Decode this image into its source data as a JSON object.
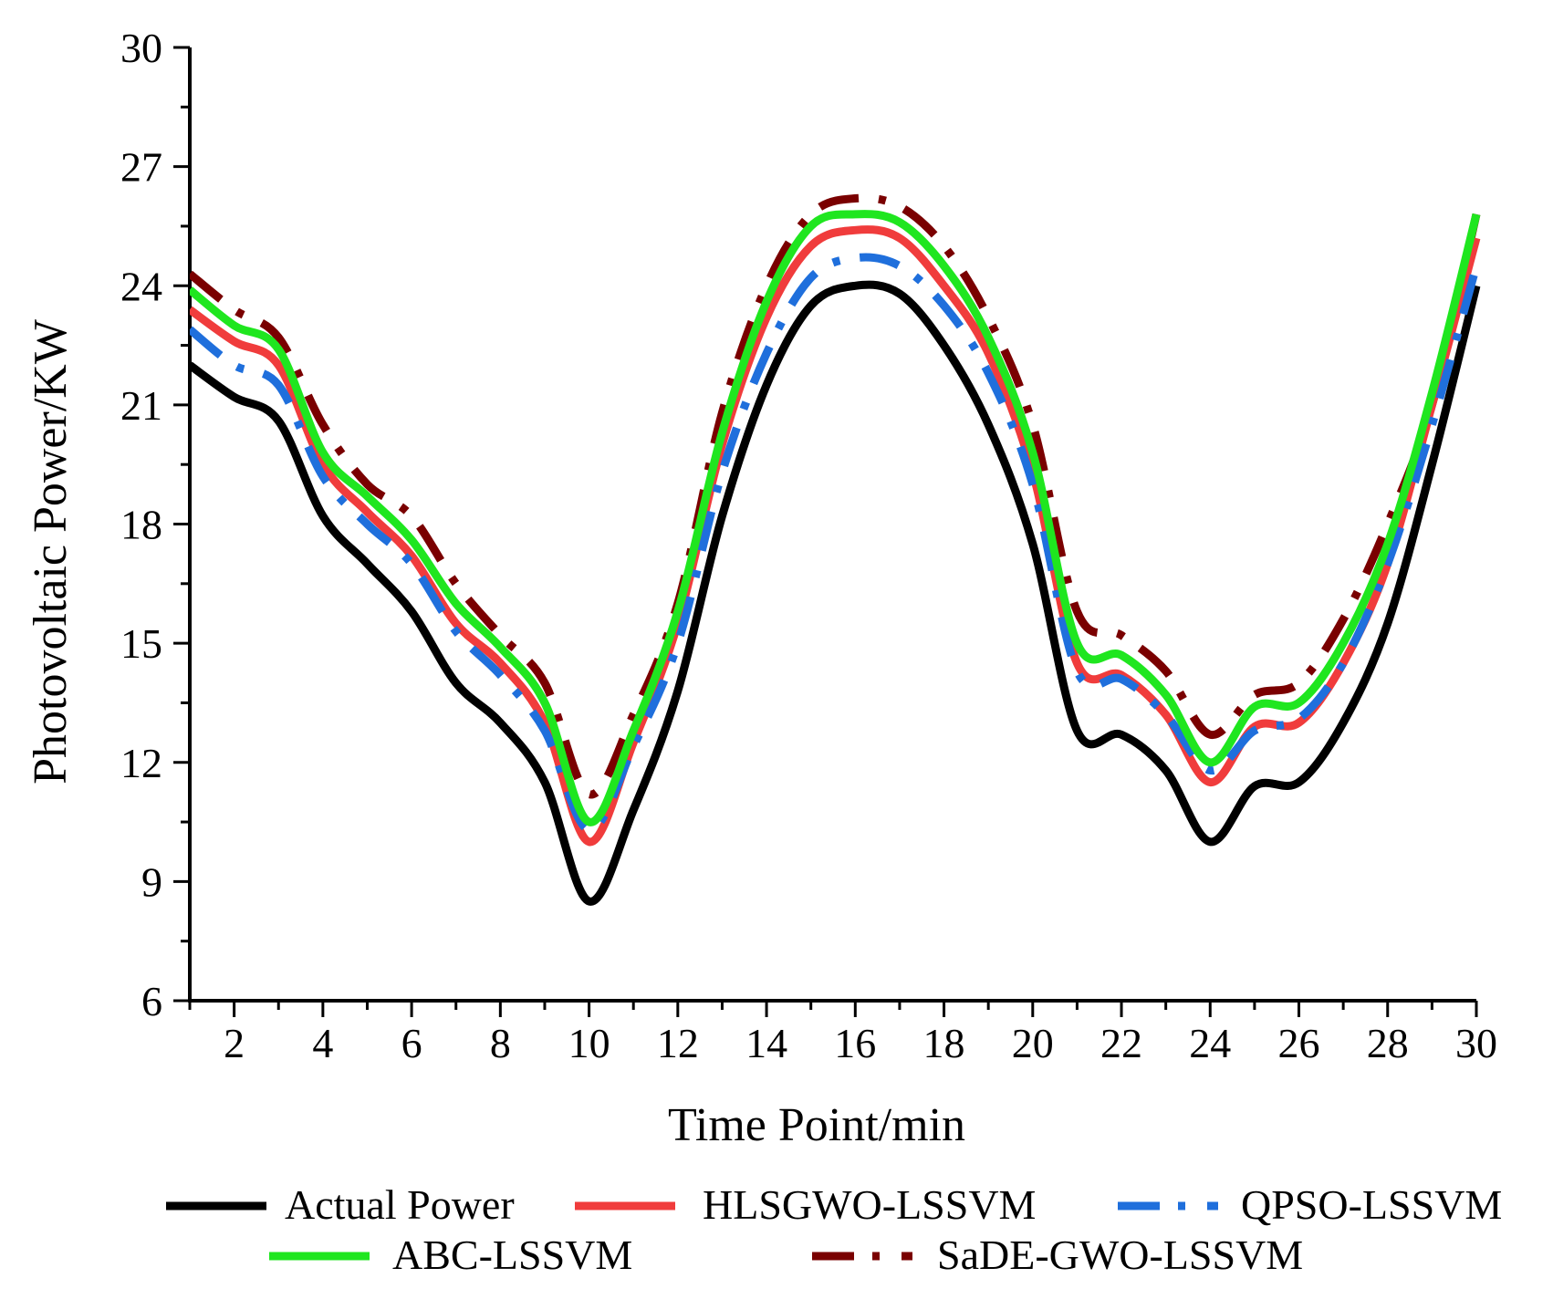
{
  "chart_data": {
    "type": "line",
    "title": "",
    "xlabel": "Time Point/min",
    "ylabel": "Photovoltaic Power/KW",
    "xlim": [
      1,
      30
    ],
    "ylim": [
      6,
      30
    ],
    "xticks": [
      2,
      4,
      6,
      8,
      10,
      12,
      14,
      16,
      18,
      20,
      22,
      24,
      26,
      28,
      30
    ],
    "yticks": [
      6,
      9,
      12,
      15,
      18,
      21,
      24,
      27,
      30
    ],
    "x": [
      1,
      2,
      3,
      4,
      5,
      6,
      7,
      8,
      9,
      10,
      11,
      12,
      13,
      14,
      15,
      16,
      17,
      18,
      19,
      20,
      21,
      22,
      23,
      24,
      25,
      26,
      27,
      28,
      29,
      30
    ],
    "legend_position": "bottom",
    "series": [
      {
        "name": "Actual Power",
        "color": "#000000",
        "dash": "solid",
        "values": [
          22.0,
          21.2,
          20.6,
          18.2,
          17.0,
          15.8,
          14.0,
          13.0,
          11.5,
          8.5,
          10.8,
          13.8,
          18.2,
          21.5,
          23.5,
          24.0,
          23.8,
          22.5,
          20.5,
          17.5,
          12.8,
          12.7,
          11.8,
          10.0,
          11.4,
          11.5,
          13.0,
          15.5,
          19.5,
          24.0
        ]
      },
      {
        "name": "HLSGWO-LSSVM",
        "color": "#f03c3c",
        "dash": "solid",
        "values": [
          23.4,
          22.6,
          22.0,
          19.5,
          18.3,
          17.2,
          15.5,
          14.5,
          13.0,
          10.0,
          12.5,
          15.5,
          20.0,
          23.2,
          25.0,
          25.4,
          25.2,
          24.0,
          22.3,
          19.3,
          14.5,
          14.2,
          13.2,
          11.5,
          12.9,
          13.0,
          14.5,
          17.0,
          21.0,
          25.2
        ]
      },
      {
        "name": "QPSO-LSSVM",
        "color": "#1f6fdc",
        "dash": "dashdot",
        "values": [
          22.9,
          22.0,
          21.5,
          19.2,
          18.0,
          17.0,
          15.3,
          14.2,
          12.8,
          10.3,
          12.4,
          15.0,
          19.3,
          22.3,
          24.2,
          24.7,
          24.5,
          23.5,
          21.8,
          19.0,
          14.3,
          14.1,
          13.2,
          11.8,
          12.8,
          13.1,
          14.5,
          17.0,
          20.5,
          24.5
        ]
      },
      {
        "name": "ABC-LSSVM",
        "color": "#1fe61f",
        "dash": "solid",
        "values": [
          23.9,
          23.0,
          22.4,
          19.8,
          18.7,
          17.6,
          16.0,
          14.9,
          13.5,
          10.5,
          12.8,
          15.8,
          20.3,
          23.6,
          25.5,
          25.8,
          25.6,
          24.5,
          22.7,
          19.8,
          15.0,
          14.7,
          13.7,
          12.0,
          13.4,
          13.5,
          15.0,
          17.5,
          21.3,
          25.8
        ]
      },
      {
        "name": "SaDE-GWO-LSSVM",
        "color": "#7a0000",
        "dash": "dashdot",
        "values": [
          24.3,
          23.4,
          22.7,
          20.5,
          19.0,
          18.2,
          16.5,
          15.2,
          14.0,
          11.2,
          13.2,
          16.0,
          20.8,
          24.0,
          25.8,
          26.2,
          26.0,
          25.0,
          23.2,
          20.5,
          15.8,
          15.2,
          14.3,
          12.7,
          13.7,
          14.0,
          15.6,
          18.0,
          21.0,
          25.8
        ]
      }
    ]
  }
}
